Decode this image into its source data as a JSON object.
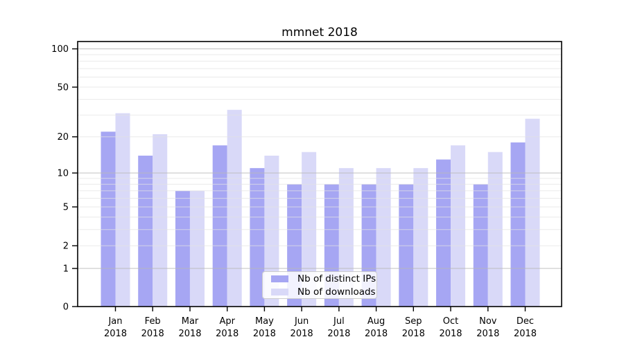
{
  "title": "mmnet 2018",
  "chart_data": {
    "type": "bar",
    "title": "mmnet 2018",
    "categories": [
      "Jan 2018",
      "Feb 2018",
      "Mar 2018",
      "Apr 2018",
      "May 2018",
      "Jun 2018",
      "Jul 2018",
      "Aug 2018",
      "Sep 2018",
      "Oct 2018",
      "Nov 2018",
      "Dec 2018"
    ],
    "series": [
      {
        "name": "Nb of distinct IPs",
        "color": "#a6a6f3",
        "values": [
          22,
          14,
          7,
          17,
          11,
          8,
          8,
          8,
          8,
          13,
          8,
          18
        ]
      },
      {
        "name": "Nb of downloads",
        "color": "#d9d9f8",
        "values": [
          31,
          21,
          7,
          33,
          14,
          15,
          11,
          11,
          11,
          17,
          15,
          28
        ]
      }
    ],
    "xlabel": "",
    "ylabel": "",
    "yscale": "log1p",
    "ylim": [
      0,
      114
    ],
    "yticks": [
      0,
      1,
      2,
      5,
      10,
      20,
      50,
      100
    ],
    "minor_gridlines": [
      2,
      3,
      4,
      5,
      6,
      7,
      8,
      9,
      20,
      30,
      40,
      50,
      60,
      70,
      80,
      90
    ],
    "major_gridlines": [
      1,
      10,
      100
    ],
    "grid": "horizontal, minor+major, drawn over bars",
    "legend_position": "lower center (inside axes)"
  },
  "colors": {
    "bar_dark": "#a6a6f3",
    "bar_light": "#d9d9f8",
    "major_grid": "#b9b9b9",
    "minor_grid": "#e3e3e3",
    "spine": "#000000",
    "background": "#ffffff"
  }
}
